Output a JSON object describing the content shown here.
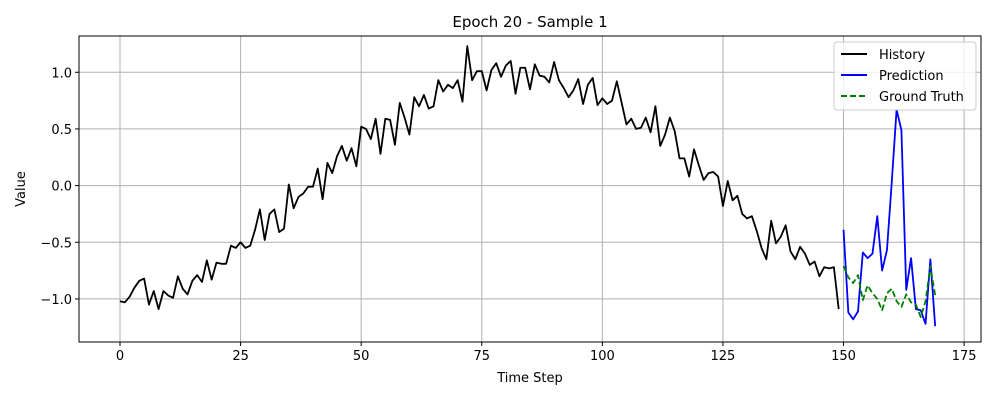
{
  "chart_data": {
    "type": "line",
    "title": "Epoch 20 - Sample 1",
    "xlabel": "Time Step",
    "ylabel": "Value",
    "xlim": [
      -8.5,
      178.5
    ],
    "ylim": [
      -1.38,
      1.32
    ],
    "xticks": [
      0,
      25,
      50,
      75,
      100,
      125,
      150,
      175
    ],
    "yticks": [
      -1.0,
      -0.5,
      0.0,
      0.5,
      1.0
    ],
    "xtick_labels": [
      "0",
      "25",
      "50",
      "75",
      "100",
      "125",
      "150",
      "175"
    ],
    "ytick_labels": [
      "−1.0",
      "−0.5",
      "0.0",
      "0.5",
      "1.0"
    ],
    "grid": true,
    "legend_position": "top-right",
    "series": [
      {
        "name": "History",
        "color": "#000000",
        "style": "solid",
        "x_start": 0,
        "values": [
          -1.02,
          -1.03,
          -0.98,
          -0.9,
          -0.84,
          -0.82,
          -1.05,
          -0.93,
          -1.09,
          -0.93,
          -0.97,
          -0.99,
          -0.8,
          -0.91,
          -0.96,
          -0.84,
          -0.79,
          -0.85,
          -0.66,
          -0.83,
          -0.68,
          -0.69,
          -0.69,
          -0.53,
          -0.55,
          -0.5,
          -0.55,
          -0.53,
          -0.39,
          -0.21,
          -0.48,
          -0.25,
          -0.21,
          -0.41,
          -0.38,
          0.01,
          -0.2,
          -0.1,
          -0.07,
          -0.01,
          -0.01,
          0.15,
          -0.12,
          0.2,
          0.11,
          0.26,
          0.35,
          0.22,
          0.33,
          0.17,
          0.52,
          0.5,
          0.41,
          0.59,
          0.28,
          0.59,
          0.58,
          0.36,
          0.73,
          0.6,
          0.45,
          0.78,
          0.7,
          0.8,
          0.68,
          0.7,
          0.93,
          0.83,
          0.89,
          0.86,
          0.93,
          0.74,
          1.23,
          0.93,
          1.01,
          1.01,
          0.84,
          1.02,
          1.08,
          0.96,
          1.06,
          1.1,
          0.81,
          1.04,
          1.04,
          0.85,
          1.07,
          0.97,
          0.96,
          0.91,
          1.09,
          0.93,
          0.86,
          0.78,
          0.84,
          0.94,
          0.72,
          0.89,
          0.95,
          0.71,
          0.77,
          0.72,
          0.75,
          0.92,
          0.73,
          0.54,
          0.59,
          0.5,
          0.51,
          0.6,
          0.47,
          0.7,
          0.35,
          0.45,
          0.6,
          0.48,
          0.24,
          0.24,
          0.08,
          0.32,
          0.18,
          0.05,
          0.11,
          0.12,
          0.08,
          -0.18,
          0.04,
          -0.13,
          -0.09,
          -0.25,
          -0.29,
          -0.27,
          -0.4,
          -0.55,
          -0.65,
          -0.31,
          -0.51,
          -0.45,
          -0.35,
          -0.58,
          -0.65,
          -0.54,
          -0.6,
          -0.7,
          -0.67,
          -0.8,
          -0.72,
          -0.73,
          -0.72,
          -1.09
        ]
      },
      {
        "name": "Prediction",
        "color": "#0000ff",
        "style": "solid",
        "x_start": 150,
        "values": [
          -0.39,
          -1.12,
          -1.18,
          -1.11,
          -0.59,
          -0.64,
          -0.6,
          -0.27,
          -0.75,
          -0.57,
          0.03,
          0.67,
          0.49,
          -0.92,
          -0.64,
          -1.09,
          -1.1,
          -1.22,
          -0.65,
          -1.24
        ]
      },
      {
        "name": "Ground Truth",
        "color": "#008000",
        "style": "dashed",
        "x_start": 150,
        "values": [
          -0.71,
          -0.81,
          -0.86,
          -0.79,
          -1.01,
          -0.88,
          -0.95,
          -1.0,
          -1.1,
          -0.95,
          -0.91,
          -1.02,
          -1.07,
          -0.96,
          -1.03,
          -1.05,
          -1.16,
          -1.02,
          -0.71,
          -0.97
        ]
      }
    ]
  }
}
